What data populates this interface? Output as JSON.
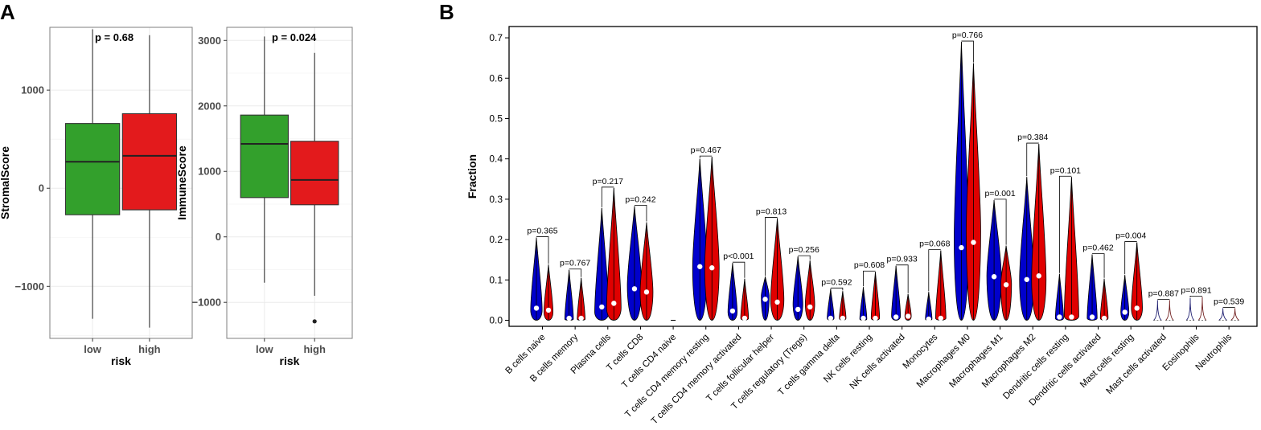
{
  "panels": {
    "a_label": "A",
    "b_label": "B"
  },
  "chart_data": [
    {
      "type": "boxplot",
      "panel": "A",
      "ylabel": "StromalScore",
      "xlabel": "risk",
      "categories": [
        "low",
        "high"
      ],
      "yticks": [
        1000,
        0,
        -1000
      ],
      "ytick_labels": [
        "1000",
        "0",
        "−1000"
      ],
      "ylim": [
        -1530,
        1640
      ],
      "pvalue": "p = 0.68",
      "boxes": [
        {
          "group": "low",
          "color": "#33a02c",
          "min": -1330,
          "q1": -270,
          "median": 270,
          "q3": 660,
          "max": 1620
        },
        {
          "group": "high",
          "color": "#e31a1c",
          "min": -1420,
          "q1": -220,
          "median": 330,
          "q3": 760,
          "max": 1560
        }
      ],
      "outliers": []
    },
    {
      "type": "boxplot",
      "panel": "A",
      "ylabel": "ImmuneScore",
      "xlabel": "risk",
      "categories": [
        "low",
        "high"
      ],
      "yticks": [
        3000,
        2000,
        1000,
        0,
        -1000
      ],
      "ytick_labels": [
        "3000",
        "2000",
        "1000",
        "0",
        "−1000"
      ],
      "ylim": [
        -1550,
        3200
      ],
      "pvalue": "p = 0.024",
      "boxes": [
        {
          "group": "low",
          "color": "#33a02c",
          "min": -700,
          "q1": 600,
          "median": 1420,
          "q3": 1860,
          "max": 3060
        },
        {
          "group": "high",
          "color": "#e31a1c",
          "min": -900,
          "q1": 490,
          "median": 870,
          "q3": 1460,
          "max": 2810
        }
      ],
      "outliers": [
        {
          "group": "high",
          "value": -1290
        }
      ]
    },
    {
      "type": "violin",
      "panel": "B",
      "ylabel": "Fraction",
      "yticks": [
        0.0,
        0.1,
        0.2,
        0.3,
        0.4,
        0.5,
        0.6,
        0.7
      ],
      "ytick_labels": [
        "0.0",
        "0.1",
        "0.2",
        "0.3",
        "0.4",
        "0.5",
        "0.6",
        "0.7"
      ],
      "ylim": [
        -0.015,
        0.728
      ],
      "series_colors": {
        "low": "#0000cc",
        "high": "#e00000"
      },
      "categories": [
        {
          "name": "B cells naive",
          "p": "p=0.365",
          "low": {
            "max": 0.205,
            "median": 0.03,
            "bulge": 0.025
          },
          "high": {
            "max": 0.138,
            "median": 0.025,
            "bulge": 0.02
          }
        },
        {
          "name": "B cells memory",
          "p": "p=0.767",
          "low": {
            "max": 0.125,
            "median": 0.005,
            "bulge": 0.003
          },
          "high": {
            "max": 0.105,
            "median": 0.005,
            "bulge": 0.003
          }
        },
        {
          "name": "Plasma cells",
          "p": "p=0.217",
          "low": {
            "max": 0.278,
            "median": 0.033,
            "bulge": 0.02
          },
          "high": {
            "max": 0.328,
            "median": 0.042,
            "bulge": 0.03
          }
        },
        {
          "name": "T cells CD8",
          "p": "p=0.242",
          "low": {
            "max": 0.283,
            "median": 0.078,
            "bulge": 0.085
          },
          "high": {
            "max": 0.243,
            "median": 0.07,
            "bulge": 0.07
          }
        },
        {
          "name": "T cells CD4 naive",
          "p": "",
          "low": {
            "max": 0.0,
            "median": 0.0,
            "bulge": 0.0
          },
          "high": {
            "max": 0.0,
            "median": 0.0,
            "bulge": 0.0
          }
        },
        {
          "name": "T cells CD4 memory resting",
          "p": "p=0.467",
          "low": {
            "max": 0.4,
            "median": 0.133,
            "bulge": 0.13
          },
          "high": {
            "max": 0.405,
            "median": 0.13,
            "bulge": 0.13
          }
        },
        {
          "name": "T cells CD4 memory activated",
          "p": "p<0.001",
          "low": {
            "max": 0.142,
            "median": 0.023,
            "bulge": 0.02
          },
          "high": {
            "max": 0.103,
            "median": 0.005,
            "bulge": 0.005
          }
        },
        {
          "name": "T cells follicular helper",
          "p": "p=0.813",
          "low": {
            "max": 0.108,
            "median": 0.052,
            "bulge": 0.06
          },
          "high": {
            "max": 0.253,
            "median": 0.045,
            "bulge": 0.05
          }
        },
        {
          "name": "T cells regulatory (Tregs)",
          "p": "p=0.256",
          "low": {
            "max": 0.158,
            "median": 0.027,
            "bulge": 0.04
          },
          "high": {
            "max": 0.148,
            "median": 0.033,
            "bulge": 0.04
          }
        },
        {
          "name": "T cells gamma delta",
          "p": "p=0.592",
          "low": {
            "max": 0.078,
            "median": 0.005,
            "bulge": 0.005
          },
          "high": {
            "max": 0.072,
            "median": 0.005,
            "bulge": 0.005
          }
        },
        {
          "name": "NK cells resting",
          "p": "p=0.608",
          "low": {
            "max": 0.082,
            "median": 0.005,
            "bulge": 0.003
          },
          "high": {
            "max": 0.12,
            "median": 0.005,
            "bulge": 0.005
          }
        },
        {
          "name": "NK cells activated",
          "p": "p=0.933",
          "low": {
            "max": 0.135,
            "median": 0.008,
            "bulge": 0.01
          },
          "high": {
            "max": 0.065,
            "median": 0.01,
            "bulge": 0.01
          }
        },
        {
          "name": "Monocytes",
          "p": "p=0.068",
          "low": {
            "max": 0.07,
            "median": 0.003,
            "bulge": 0.003
          },
          "high": {
            "max": 0.173,
            "median": 0.005,
            "bulge": 0.005
          }
        },
        {
          "name": "Macrophages M0",
          "p": "p=0.766",
          "low": {
            "max": 0.69,
            "median": 0.18,
            "bulge": 0.2
          },
          "high": {
            "max": 0.637,
            "median": 0.193,
            "bulge": 0.22
          }
        },
        {
          "name": "Macrophages M1",
          "p": "p=0.001",
          "low": {
            "max": 0.298,
            "median": 0.108,
            "bulge": 0.11
          },
          "high": {
            "max": 0.185,
            "median": 0.088,
            "bulge": 0.09
          }
        },
        {
          "name": "Macrophages M2",
          "p": "p=0.384",
          "low": {
            "max": 0.355,
            "median": 0.101,
            "bulge": 0.1
          },
          "high": {
            "max": 0.437,
            "median": 0.11,
            "bulge": 0.1
          }
        },
        {
          "name": "Dendritic cells resting",
          "p": "p=0.101",
          "low": {
            "max": 0.115,
            "median": 0.008,
            "bulge": 0.005
          },
          "high": {
            "max": 0.355,
            "median": 0.008,
            "bulge": 0.01
          }
        },
        {
          "name": "Dendritic cells activated",
          "p": "p=0.462",
          "low": {
            "max": 0.163,
            "median": 0.008,
            "bulge": 0.005
          },
          "high": {
            "max": 0.103,
            "median": 0.005,
            "bulge": 0.005
          }
        },
        {
          "name": "Mast cells resting",
          "p": "p=0.004",
          "low": {
            "max": 0.112,
            "median": 0.02,
            "bulge": 0.02
          },
          "high": {
            "max": 0.193,
            "median": 0.03,
            "bulge": 0.03
          }
        },
        {
          "name": "Mast cells activated",
          "p": "p=0.887",
          "low": {
            "max": 0.05,
            "median": 0.0,
            "bulge": 0.0
          },
          "high": {
            "max": 0.05,
            "median": 0.0,
            "bulge": 0.0
          }
        },
        {
          "name": "Eosinophils",
          "p": "p=0.891",
          "low": {
            "max": 0.055,
            "median": 0.0,
            "bulge": 0.0
          },
          "high": {
            "max": 0.058,
            "median": 0.0,
            "bulge": 0.0
          }
        },
        {
          "name": "Neutrophils",
          "p": "p=0.539",
          "low": {
            "max": 0.03,
            "median": 0.0,
            "bulge": 0.0
          },
          "high": {
            "max": 0.03,
            "median": 0.0,
            "bulge": 0.0
          }
        }
      ]
    }
  ]
}
